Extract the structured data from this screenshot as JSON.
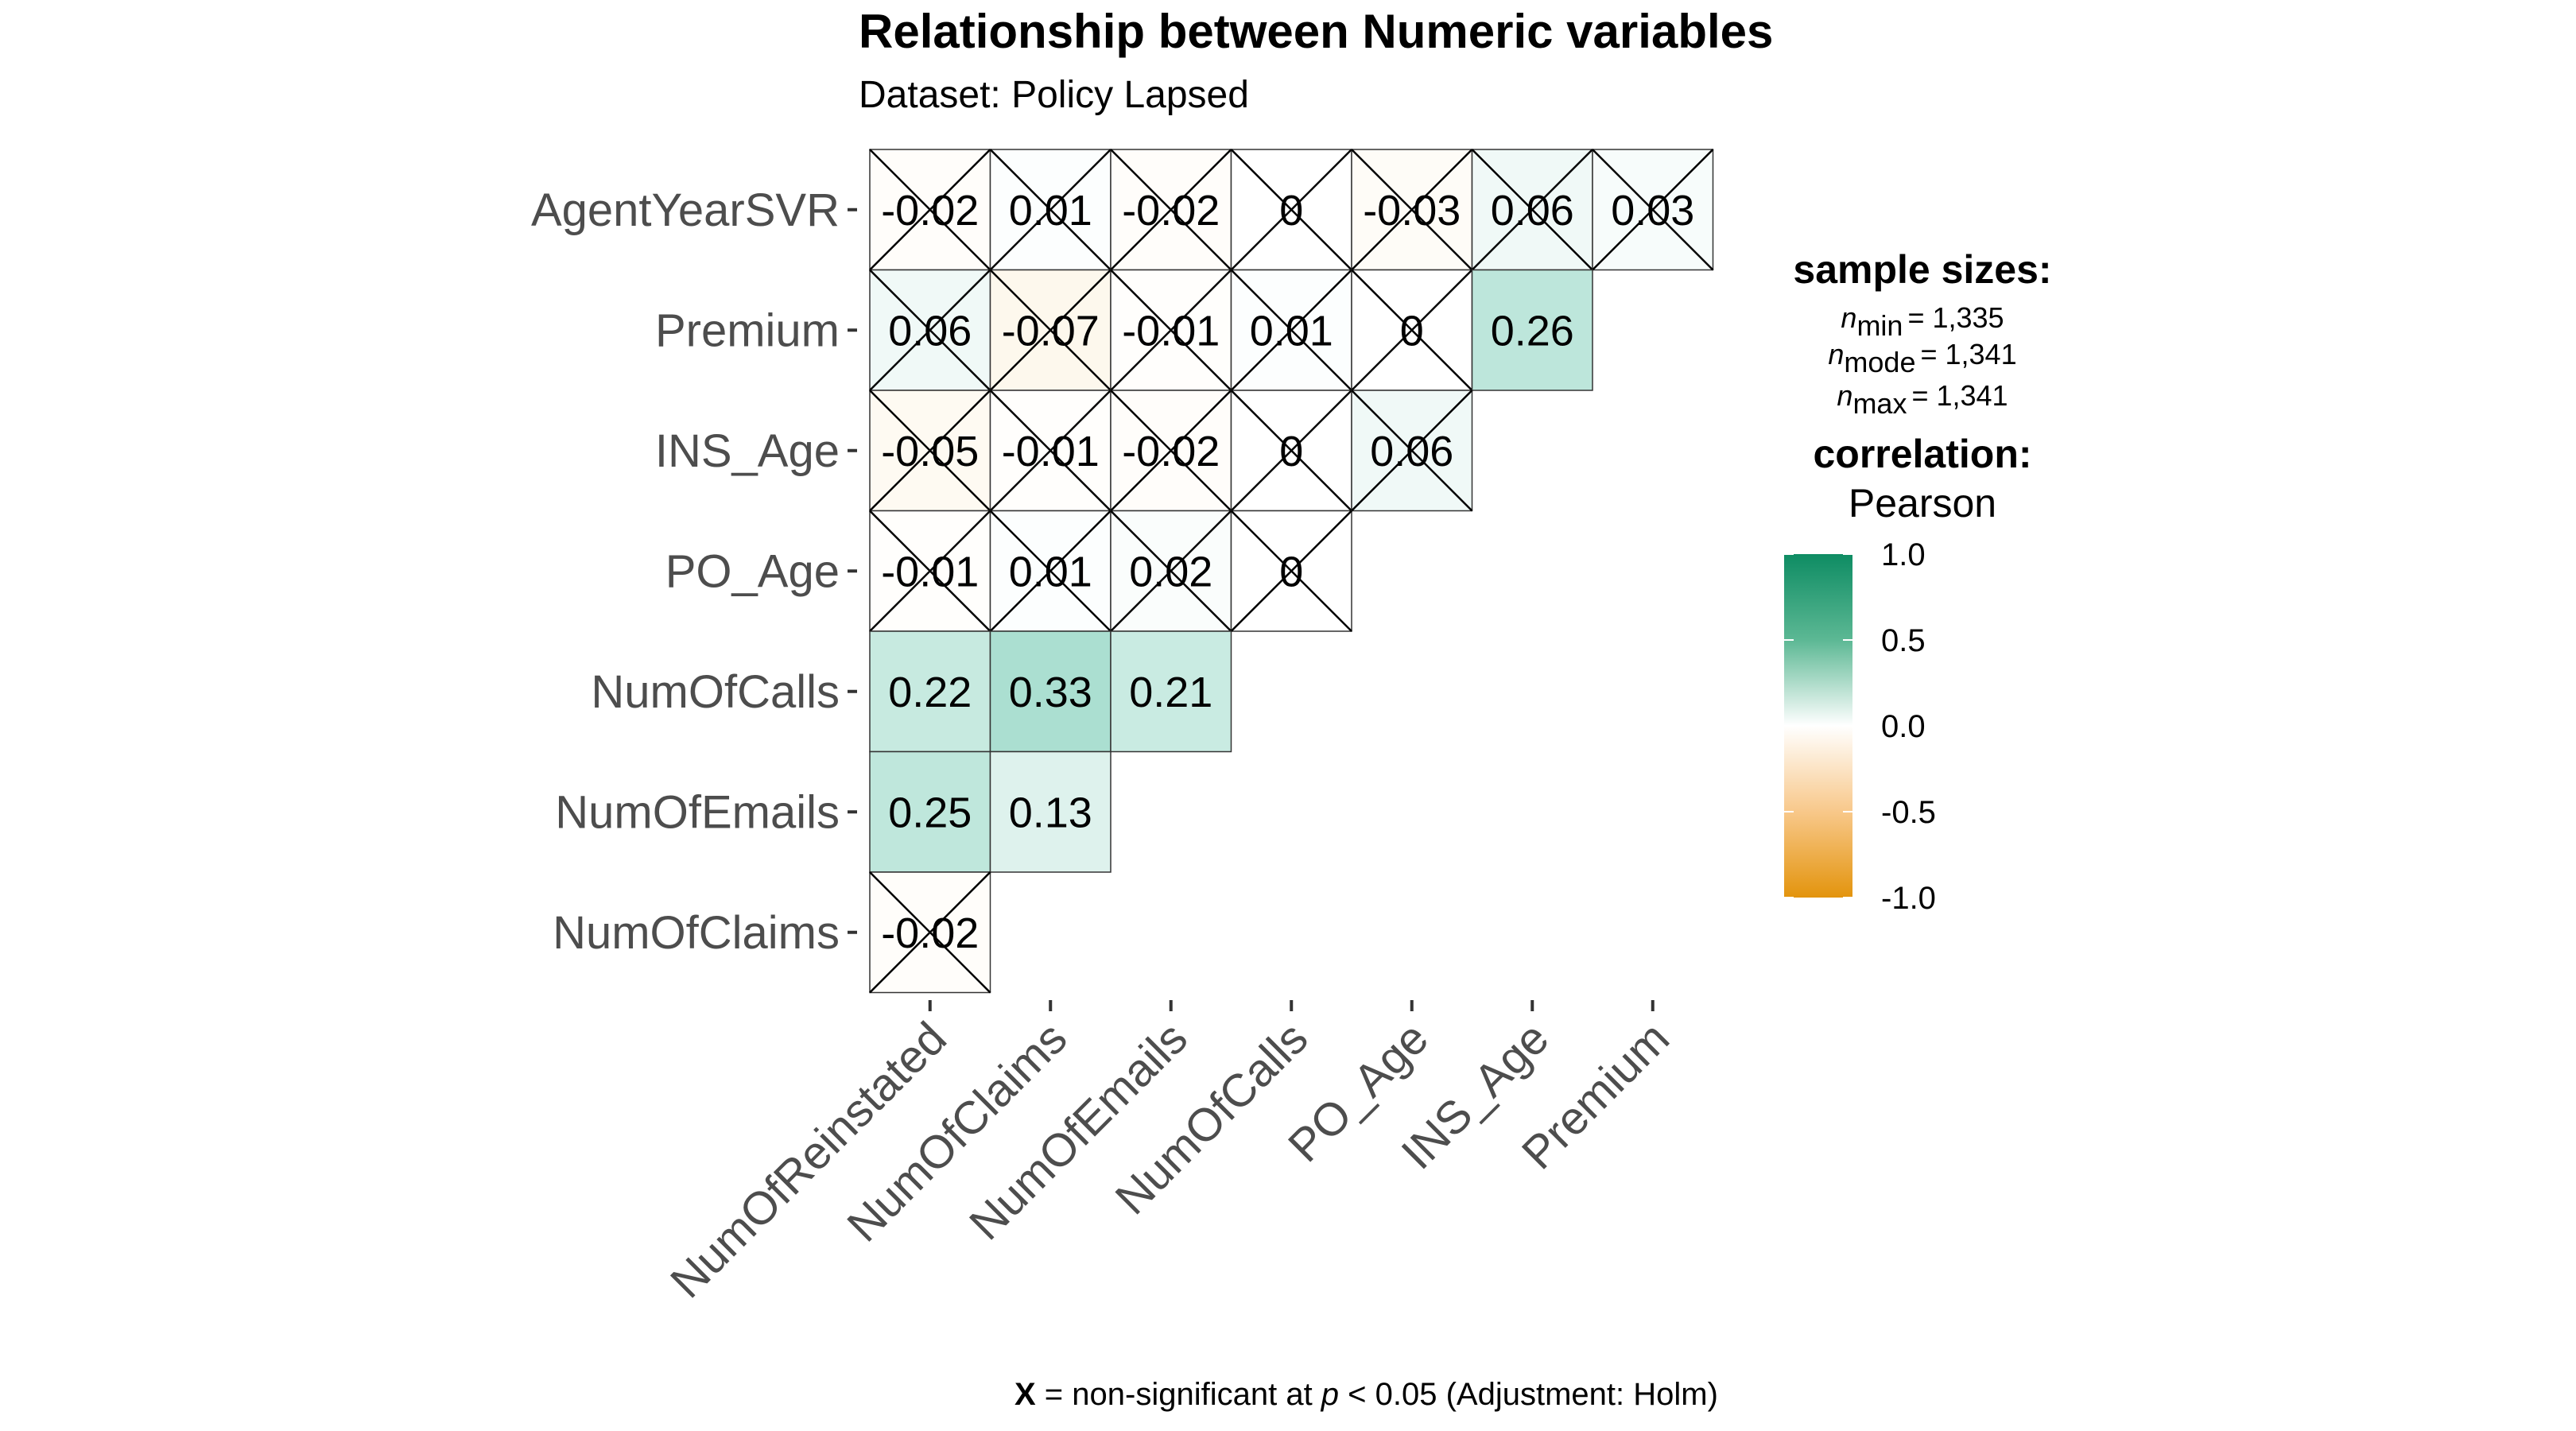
{
  "chart_data": {
    "type": "heatmap",
    "title": "Relationship between Numeric variables",
    "subtitle": "Dataset: Policy Lapsed",
    "x_categories": [
      "NumOfReinstated",
      "NumOfClaims",
      "NumOfEmails",
      "NumOfCalls",
      "PO_Age",
      "INS_Age",
      "Premium"
    ],
    "y_categories": [
      "AgentYearSVR",
      "Premium",
      "INS_Age",
      "PO_Age",
      "NumOfCalls",
      "NumOfEmails",
      "NumOfClaims"
    ],
    "cells": [
      {
        "x": "NumOfReinstated",
        "y": "AgentYearSVR",
        "value": -0.02,
        "label": "-0.02",
        "nonsignificant": true
      },
      {
        "x": "NumOfClaims",
        "y": "AgentYearSVR",
        "value": 0.01,
        "label": "0.01",
        "nonsignificant": true
      },
      {
        "x": "NumOfEmails",
        "y": "AgentYearSVR",
        "value": -0.02,
        "label": "-0.02",
        "nonsignificant": true
      },
      {
        "x": "NumOfCalls",
        "y": "AgentYearSVR",
        "value": 0,
        "label": "0",
        "nonsignificant": true
      },
      {
        "x": "PO_Age",
        "y": "AgentYearSVR",
        "value": -0.03,
        "label": "-0.03",
        "nonsignificant": true
      },
      {
        "x": "INS_Age",
        "y": "AgentYearSVR",
        "value": 0.06,
        "label": "0.06",
        "nonsignificant": true
      },
      {
        "x": "Premium",
        "y": "AgentYearSVR",
        "value": 0.03,
        "label": "0.03",
        "nonsignificant": true
      },
      {
        "x": "NumOfReinstated",
        "y": "Premium",
        "value": 0.06,
        "label": "0.06",
        "nonsignificant": true
      },
      {
        "x": "NumOfClaims",
        "y": "Premium",
        "value": -0.07,
        "label": "-0.07",
        "nonsignificant": true
      },
      {
        "x": "NumOfEmails",
        "y": "Premium",
        "value": -0.01,
        "label": "-0.01",
        "nonsignificant": true
      },
      {
        "x": "NumOfCalls",
        "y": "Premium",
        "value": 0.01,
        "label": "0.01",
        "nonsignificant": true
      },
      {
        "x": "PO_Age",
        "y": "Premium",
        "value": 0,
        "label": "0",
        "nonsignificant": true
      },
      {
        "x": "INS_Age",
        "y": "Premium",
        "value": 0.26,
        "label": "0.26",
        "nonsignificant": false
      },
      {
        "x": "NumOfReinstated",
        "y": "INS_Age",
        "value": -0.05,
        "label": "-0.05",
        "nonsignificant": true
      },
      {
        "x": "NumOfClaims",
        "y": "INS_Age",
        "value": -0.01,
        "label": "-0.01",
        "nonsignificant": true
      },
      {
        "x": "NumOfEmails",
        "y": "INS_Age",
        "value": -0.02,
        "label": "-0.02",
        "nonsignificant": true
      },
      {
        "x": "NumOfCalls",
        "y": "INS_Age",
        "value": 0,
        "label": "0",
        "nonsignificant": true
      },
      {
        "x": "PO_Age",
        "y": "INS_Age",
        "value": 0.06,
        "label": "0.06",
        "nonsignificant": true
      },
      {
        "x": "NumOfReinstated",
        "y": "PO_Age",
        "value": -0.01,
        "label": "-0.01",
        "nonsignificant": true
      },
      {
        "x": "NumOfClaims",
        "y": "PO_Age",
        "value": 0.01,
        "label": "0.01",
        "nonsignificant": true
      },
      {
        "x": "NumOfEmails",
        "y": "PO_Age",
        "value": 0.02,
        "label": "0.02",
        "nonsignificant": true
      },
      {
        "x": "NumOfCalls",
        "y": "PO_Age",
        "value": 0,
        "label": "0",
        "nonsignificant": true
      },
      {
        "x": "NumOfReinstated",
        "y": "NumOfCalls",
        "value": 0.22,
        "label": "0.22",
        "nonsignificant": false
      },
      {
        "x": "NumOfClaims",
        "y": "NumOfCalls",
        "value": 0.33,
        "label": "0.33",
        "nonsignificant": false
      },
      {
        "x": "NumOfEmails",
        "y": "NumOfCalls",
        "value": 0.21,
        "label": "0.21",
        "nonsignificant": false
      },
      {
        "x": "NumOfReinstated",
        "y": "NumOfEmails",
        "value": 0.25,
        "label": "0.25",
        "nonsignificant": false
      },
      {
        "x": "NumOfClaims",
        "y": "NumOfEmails",
        "value": 0.13,
        "label": "0.13",
        "nonsignificant": false
      },
      {
        "x": "NumOfReinstated",
        "y": "NumOfClaims",
        "value": -0.02,
        "label": "-0.02",
        "nonsignificant": true
      }
    ],
    "color_scale": {
      "low": "#E69F00",
      "mid": "#FFFFFF",
      "high": "#009E73",
      "limits": [
        -1,
        1
      ],
      "breaks": [
        1.0,
        0.5,
        0.0,
        -0.5,
        -1.0
      ],
      "break_labels": [
        "1.0",
        "0.5",
        "0.0",
        "-0.5",
        "-1.0"
      ]
    },
    "legend": {
      "placement": "right",
      "sample_title": "sample sizes:",
      "n_min_sub": "min",
      "n_min_value": "= 1,335",
      "n_mode_sub": "mode",
      "n_mode_value": "= 1,341",
      "n_max_sub": "max",
      "n_max_value": "= 1,341",
      "n_symbol": "n",
      "corr_title": "correlation:",
      "corr_method": "Pearson"
    },
    "caption": {
      "symbol": "X",
      "text1": " = non-significant at ",
      "p": "p",
      "text2": " < 0.05 (Adjustment: Holm)"
    }
  }
}
